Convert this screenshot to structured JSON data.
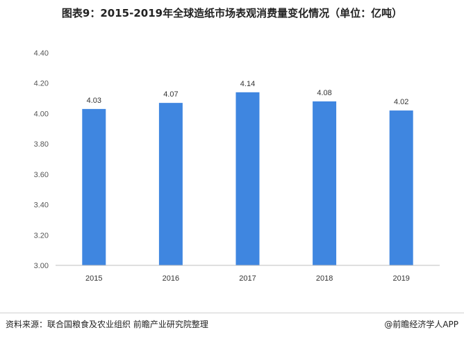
{
  "title": "图表9：2015-2019年全球造纸市场表观消费量变化情况（单位：亿吨）",
  "chart_data": {
    "type": "bar",
    "categories": [
      "2015",
      "2016",
      "2017",
      "2018",
      "2019"
    ],
    "values": [
      4.03,
      4.07,
      4.14,
      4.08,
      4.02
    ],
    "data_labels": [
      "4.03",
      "4.07",
      "4.14",
      "4.08",
      "4.02"
    ],
    "ylim": [
      3.0,
      4.4
    ],
    "yticks": [
      "3.00",
      "3.20",
      "3.40",
      "3.60",
      "3.80",
      "4.00",
      "4.20",
      "4.40"
    ],
    "ytick_values": [
      3.0,
      3.2,
      3.4,
      3.6,
      3.8,
      4.0,
      4.2,
      4.4
    ],
    "grid": false,
    "bar_color": "#3f86e0",
    "xlabel": "",
    "ylabel": ""
  },
  "footer": {
    "source": "资料来源：联合国粮食及农业组织 前瞻产业研究院整理",
    "credit": "@前瞻经济学人APP"
  }
}
